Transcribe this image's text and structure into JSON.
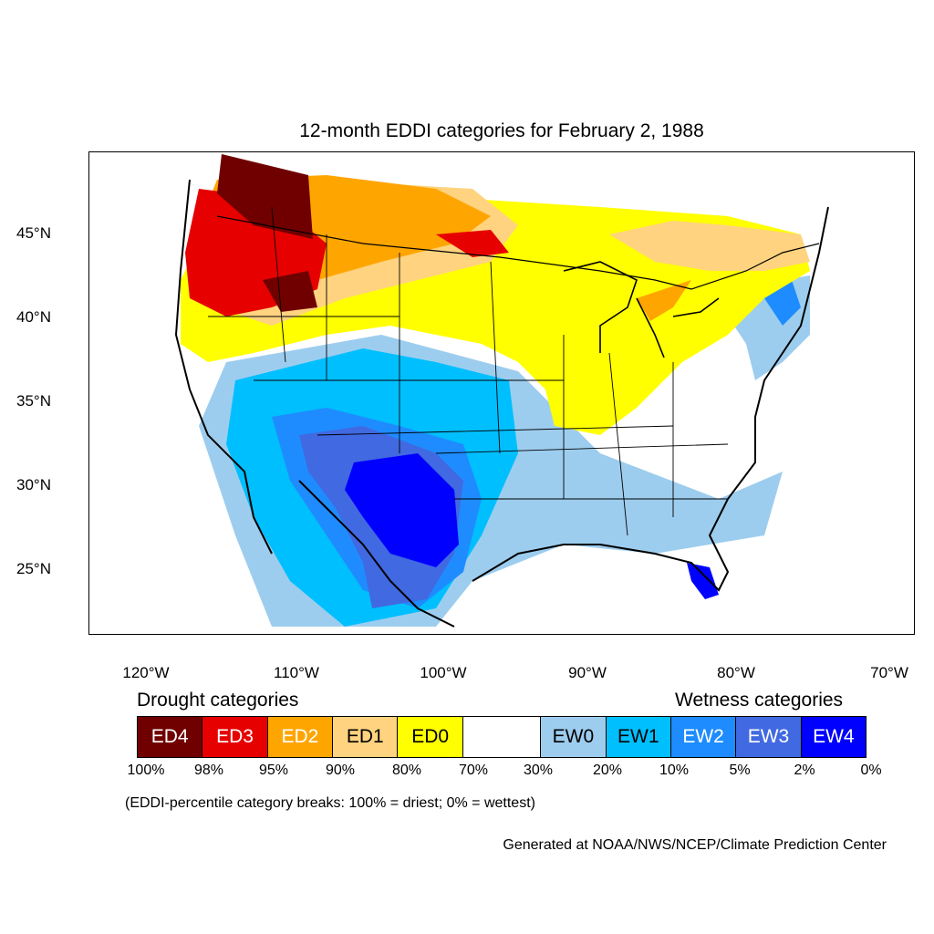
{
  "title": "12-month EDDI categories for February 2, 1988",
  "lat_labels": [
    "45°N",
    "40°N",
    "35°N",
    "30°N",
    "25°N"
  ],
  "lon_labels": [
    "120°W",
    "110°W",
    "100°W",
    "90°W",
    "80°W",
    "70°W"
  ],
  "drought_heading": "Drought categories",
  "wetness_heading": "Wetness categories",
  "legend": [
    {
      "label": "ED4",
      "color": "#700000",
      "text_color": "#ffffff"
    },
    {
      "label": "ED3",
      "color": "#e60000",
      "text_color": "#ffffff"
    },
    {
      "label": "ED2",
      "color": "#ffa500",
      "text_color": "#ffffff"
    },
    {
      "label": "ED1",
      "color": "#ffd37f",
      "text_color": "#000000"
    },
    {
      "label": "ED0",
      "color": "#ffff00",
      "text_color": "#000000"
    },
    {
      "label": "",
      "color": "#ffffff",
      "text_color": "#000000"
    },
    {
      "label": "EW0",
      "color": "#9dcdee",
      "text_color": "#000000"
    },
    {
      "label": "EW1",
      "color": "#00bfff",
      "text_color": "#000000"
    },
    {
      "label": "EW2",
      "color": "#1e8cff",
      "text_color": "#ffffff"
    },
    {
      "label": "EW3",
      "color": "#4169e1",
      "text_color": "#ffffff"
    },
    {
      "label": "EW4",
      "color": "#0000ff",
      "text_color": "#ffffff"
    }
  ],
  "percent_breaks": [
    "100%",
    "98%",
    "95%",
    "90%",
    "80%",
    "70%",
    "30%",
    "20%",
    "10%",
    "5%",
    "2%",
    "0%"
  ],
  "note": "(EDDI-percentile category breaks: 100% = driest; 0% = wettest)",
  "credit": "Generated at NOAA/NWS/NCEP/Climate Prediction Center"
}
